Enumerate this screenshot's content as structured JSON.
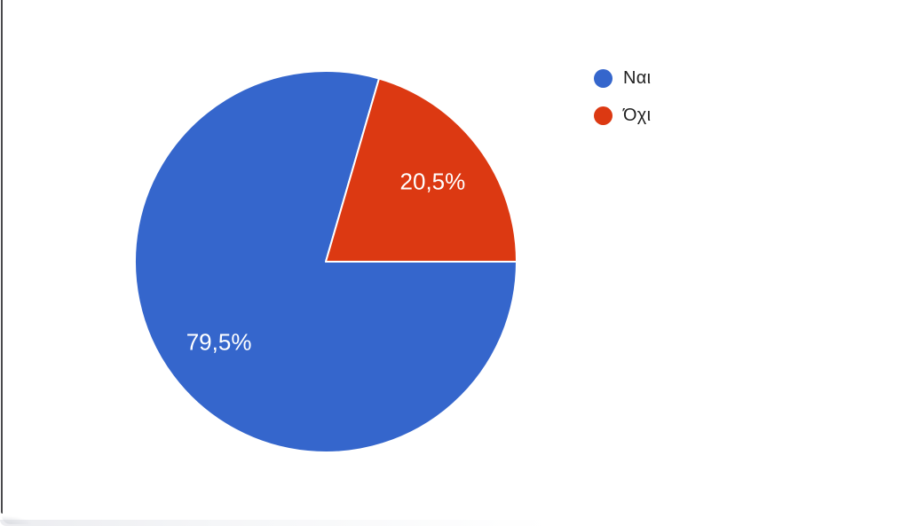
{
  "page": {
    "background": "#ffffff",
    "left_border_color": "#48484b"
  },
  "chart_data": {
    "type": "pie",
    "title": "",
    "legend_position": "right",
    "start_angle_deg": 90,
    "direction": "clockwise",
    "separator_color": "#ffffff",
    "label_color": "#ffffff",
    "slices": [
      {
        "label": "Ναι",
        "value": 79.5,
        "display": "79,5%",
        "color": "#3566cc"
      },
      {
        "label": "Όχι",
        "value": 20.5,
        "display": "20,5%",
        "color": "#dc3912"
      }
    ]
  }
}
